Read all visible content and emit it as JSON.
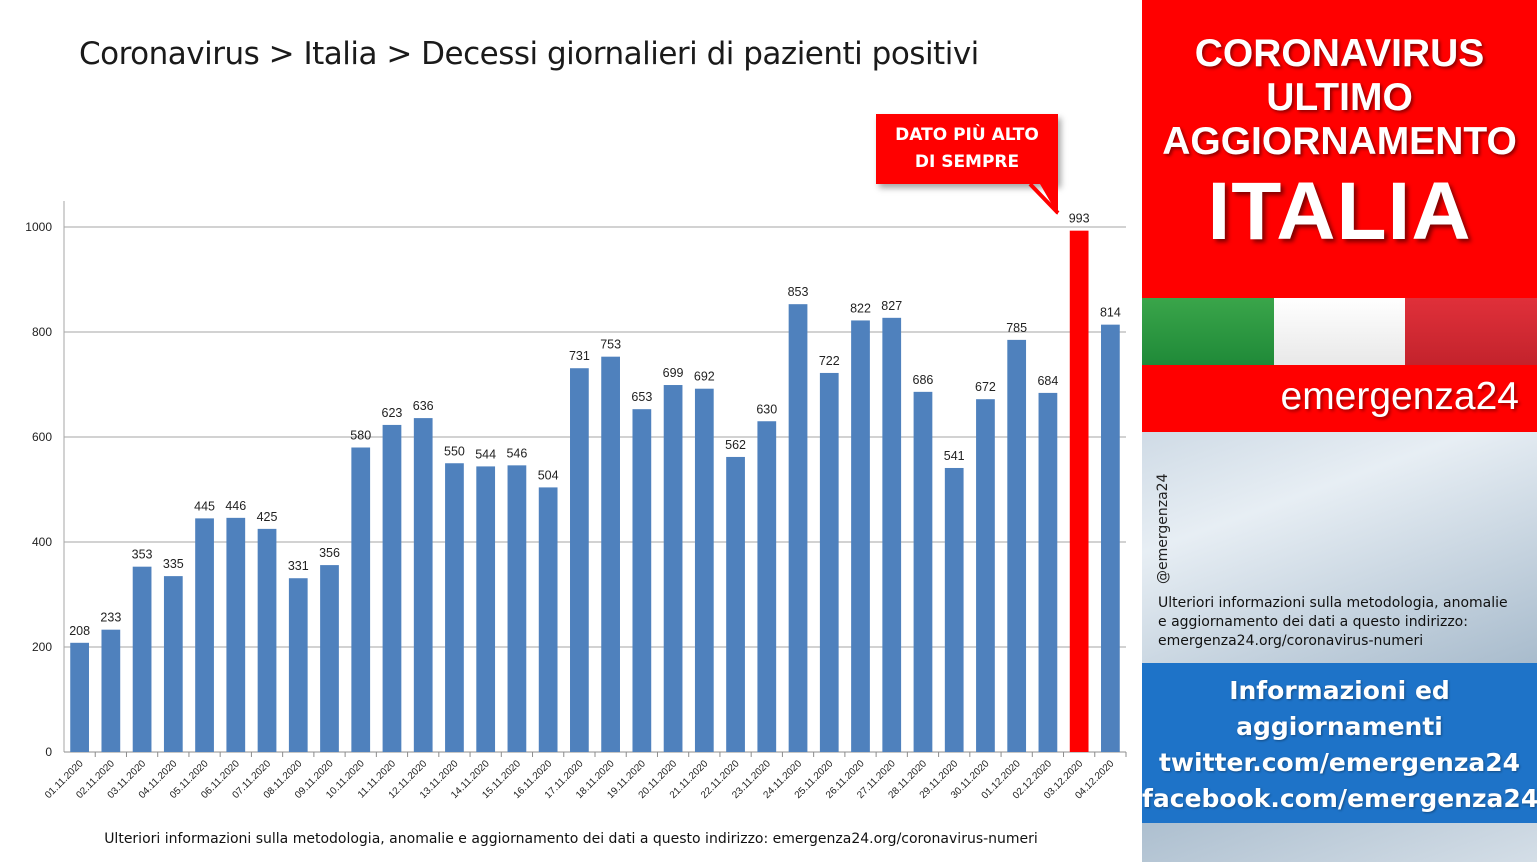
{
  "title": "Coronavirus > Italia > Decessi giornalieri di pazienti positivi",
  "callout": {
    "line1": "DATO PIÙ ALTO",
    "line2": "DI SEMPRE"
  },
  "footer_note": "Ulteriori informazioni sulla metodologia, anomalie e aggiornamento dei dati a questo indirizzo: emergenza24.org/coronavirus-numeri",
  "sidebar": {
    "header_line1": "CORONAVIRUS",
    "header_line2": "ULTIMO",
    "header_line3": "AGGIORNAMENTO",
    "header_big": "ITALIA",
    "brand": "emergenza24",
    "handle": "@emergenza24",
    "note_line1": "Ulteriori informazioni sulla metodologia, anomalie",
    "note_line2": "e aggiornamento dei dati a questo indirizzo:",
    "note_line3": "emergenza24.org/coronavirus-numeri",
    "info_line1": "Informazioni ed",
    "info_line2": "aggiornamenti",
    "info_line3": "twitter.com/emergenza24",
    "info_line4": "facebook.com/emergenza24"
  },
  "colors": {
    "bar": "#4f81bd",
    "highlight_bar": "#ff0000",
    "accent_red": "#ff0000",
    "accent_blue": "#1e73c8"
  },
  "chart_data": {
    "type": "bar",
    "categories": [
      "01.11.2020",
      "02.11.2020",
      "03.11.2020",
      "04.11.2020",
      "05.11.2020",
      "06.11.2020",
      "07.11.2020",
      "08.11.2020",
      "09.11.2020",
      "10.11.2020",
      "11.11.2020",
      "12.11.2020",
      "13.11.2020",
      "14.11.2020",
      "15.11.2020",
      "16.11.2020",
      "17.11.2020",
      "18.11.2020",
      "19.11.2020",
      "20.11.2020",
      "21.11.2020",
      "22.11.2020",
      "23.11.2020",
      "24.11.2020",
      "25.11.2020",
      "26.11.2020",
      "27.11.2020",
      "28.11.2020",
      "29.11.2020",
      "30.11.2020",
      "01.12.2020",
      "02.12.2020",
      "03.12.2020",
      "04.12.2020"
    ],
    "values": [
      208,
      233,
      353,
      335,
      445,
      446,
      425,
      331,
      356,
      580,
      623,
      636,
      550,
      544,
      546,
      504,
      731,
      753,
      653,
      699,
      692,
      562,
      630,
      853,
      722,
      822,
      827,
      686,
      541,
      672,
      785,
      684,
      993,
      814
    ],
    "highlight_index": 32,
    "ylim": [
      0,
      1000
    ],
    "yticks": [
      0,
      200,
      400,
      600,
      800,
      1000
    ],
    "grid": true,
    "legend": "none",
    "xlabel": "",
    "ylabel": ""
  }
}
